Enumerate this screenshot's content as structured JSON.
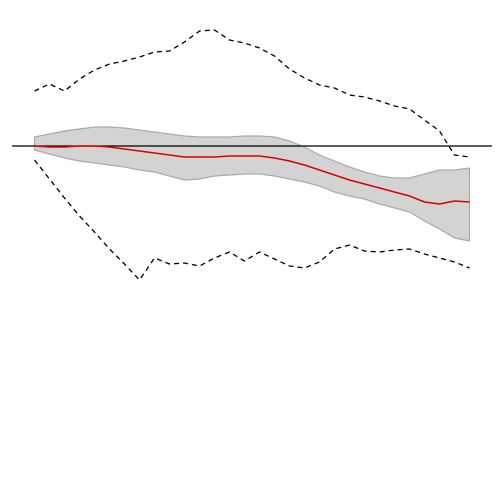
{
  "chart_data": {
    "type": "line",
    "x": [
      0,
      1,
      2,
      3,
      4,
      5,
      6,
      7,
      8,
      9,
      10,
      11,
      12,
      13,
      14,
      15,
      16,
      17,
      18,
      19,
      20,
      21,
      22,
      23,
      24,
      25,
      26,
      27,
      28,
      29
    ],
    "xlim": [
      -1.5,
      30.5
    ],
    "ylim": [
      -34,
      13
    ],
    "hline": 0,
    "hline_color": "#000000",
    "band": {
      "color": "#d3d3d3",
      "edge_color": "#aaaaaa",
      "upper": [
        0.9,
        1.2,
        1.5,
        1.7,
        1.9,
        1.9,
        1.8,
        1.6,
        1.4,
        1.2,
        1.0,
        0.9,
        0.9,
        0.9,
        1.0,
        1.0,
        0.9,
        0.5,
        -0.1,
        -0.9,
        -1.5,
        -2.1,
        -2.6,
        -3.0,
        -3.2,
        -3.2,
        -2.8,
        -2.4,
        -2.4,
        -2.2
      ],
      "lower": [
        -0.4,
        -0.8,
        -1.2,
        -1.5,
        -1.7,
        -1.9,
        -2.1,
        -2.4,
        -2.6,
        -3.0,
        -3.4,
        -3.3,
        -3.0,
        -2.9,
        -2.8,
        -2.8,
        -3.0,
        -3.3,
        -3.6,
        -4.0,
        -4.6,
        -5.0,
        -5.3,
        -5.8,
        -6.2,
        -6.6,
        -7.5,
        -8.3,
        -9.2,
        -9.5
      ]
    },
    "series": [
      {
        "color": "#dd0000",
        "dashed": false,
        "values": [
          0,
          -0.1,
          -0.1,
          0,
          0,
          -0.1,
          -0.3,
          -0.5,
          -0.7,
          -0.9,
          -1.1,
          -1.1,
          -1.1,
          -1.0,
          -1.0,
          -1.0,
          -1.2,
          -1.5,
          -1.9,
          -2.4,
          -2.9,
          -3.4,
          -3.8,
          -4.2,
          -4.6,
          -5.0,
          -5.6,
          -5.8,
          -5.5,
          -5.6
        ]
      },
      {
        "color": "#000000",
        "dashed": true,
        "values": [
          5.5,
          6.2,
          5.5,
          6.7,
          7.6,
          8.2,
          8.5,
          8.9,
          9.4,
          9.5,
          10.4,
          11.5,
          11.6,
          10.6,
          10.3,
          9.8,
          9.0,
          7.7,
          6.8,
          6.1,
          5.8,
          5.1,
          4.9,
          4.5,
          4.0,
          3.7,
          2.6,
          1.5,
          -0.9,
          -1.1
        ]
      },
      {
        "color": "#000000",
        "dashed": true,
        "values": [
          -1.4,
          -3.3,
          -5.2,
          -7.0,
          -8.6,
          -10.3,
          -11.8,
          -13.4,
          -11.2,
          -11.8,
          -11.7,
          -12.0,
          -11.2,
          -10.6,
          -11.5,
          -10.6,
          -11.3,
          -12.0,
          -12.2,
          -11.6,
          -10.3,
          -9.9,
          -10.5,
          -10.6,
          -10.4,
          -10.3,
          -10.8,
          -11.2,
          -11.6,
          -12.2
        ]
      }
    ]
  }
}
